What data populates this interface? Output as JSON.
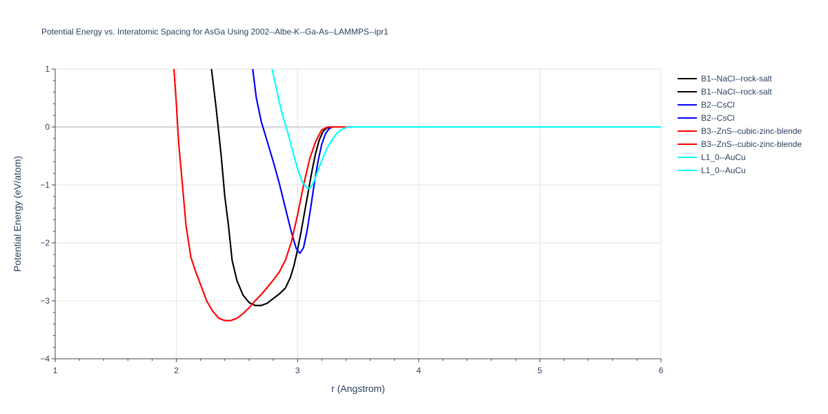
{
  "chart_data": {
    "type": "line",
    "title": "Potential Energy vs. Interatomic Spacing for AsGa Using 2002--Albe-K--Ga-As--LAMMPS--ipr1",
    "xlabel": "r (Angstrom)",
    "ylabel": "Potential Energy (eV/atom)",
    "xlim": [
      1,
      6
    ],
    "ylim": [
      -4,
      1
    ],
    "xticks": [
      1,
      2,
      3,
      4,
      5,
      6
    ],
    "yticks": [
      -4,
      -3,
      -2,
      -1,
      0,
      1
    ],
    "grid": true,
    "legend_position": "right",
    "series": [
      {
        "name": "B1--NaCl--rock-salt",
        "color": "#000000",
        "x": [
          2.29,
          2.33,
          2.37,
          2.4,
          2.43,
          2.46,
          2.5,
          2.55,
          2.6,
          2.65,
          2.7,
          2.75,
          2.8,
          2.85,
          2.9,
          2.94,
          2.97,
          3.0,
          3.03,
          3.06,
          3.09,
          3.12,
          3.15,
          3.18,
          3.21,
          3.24,
          3.27,
          3.3,
          3.35,
          3.4,
          6.0
        ],
        "y": [
          1.0,
          0.3,
          -0.5,
          -1.2,
          -1.7,
          -2.3,
          -2.65,
          -2.9,
          -3.03,
          -3.08,
          -3.08,
          -3.04,
          -2.96,
          -2.88,
          -2.78,
          -2.6,
          -2.4,
          -2.12,
          -1.8,
          -1.45,
          -1.1,
          -0.75,
          -0.45,
          -0.22,
          -0.08,
          -0.02,
          0.0,
          0.0,
          0.0,
          0.0,
          0.0
        ]
      },
      {
        "name": "B1--NaCl--rock-salt",
        "color": "#000000",
        "x": [
          2.29,
          2.33,
          2.37,
          2.4,
          2.43,
          2.46,
          2.5,
          2.55,
          2.6,
          2.65,
          2.7,
          2.75,
          2.8,
          2.85,
          2.9,
          2.94,
          2.97,
          3.0,
          3.03,
          3.06,
          3.09,
          3.12,
          3.15,
          3.18,
          3.21,
          3.24,
          3.27,
          3.3,
          3.35,
          3.4,
          6.0
        ],
        "y": [
          1.0,
          0.3,
          -0.5,
          -1.2,
          -1.7,
          -2.3,
          -2.65,
          -2.9,
          -3.03,
          -3.08,
          -3.08,
          -3.04,
          -2.96,
          -2.88,
          -2.78,
          -2.6,
          -2.4,
          -2.12,
          -1.8,
          -1.45,
          -1.1,
          -0.75,
          -0.45,
          -0.22,
          -0.08,
          -0.02,
          0.0,
          0.0,
          0.0,
          0.0,
          0.0
        ]
      },
      {
        "name": "B2--CsCl",
        "color": "#0000ff",
        "x": [
          2.63,
          2.66,
          2.7,
          2.75,
          2.8,
          2.85,
          2.9,
          2.95,
          2.99,
          3.02,
          3.05,
          3.08,
          3.11,
          3.14,
          3.17,
          3.2,
          3.23,
          3.26,
          3.29,
          3.32,
          3.4,
          6.0
        ],
        "y": [
          1.0,
          0.5,
          0.1,
          -0.25,
          -0.6,
          -0.98,
          -1.4,
          -1.82,
          -2.1,
          -2.18,
          -2.08,
          -1.78,
          -1.38,
          -0.95,
          -0.58,
          -0.3,
          -0.12,
          -0.03,
          0.0,
          0.0,
          0.0,
          0.0
        ]
      },
      {
        "name": "B2--CsCl",
        "color": "#0000ff",
        "x": [
          2.63,
          2.66,
          2.7,
          2.75,
          2.8,
          2.85,
          2.9,
          2.95,
          2.99,
          3.02,
          3.05,
          3.08,
          3.11,
          3.14,
          3.17,
          3.2,
          3.23,
          3.26,
          3.29,
          3.32,
          3.4,
          6.0
        ],
        "y": [
          1.0,
          0.5,
          0.1,
          -0.25,
          -0.6,
          -0.98,
          -1.4,
          -1.82,
          -2.1,
          -2.18,
          -2.08,
          -1.78,
          -1.38,
          -0.95,
          -0.58,
          -0.3,
          -0.12,
          -0.03,
          0.0,
          0.0,
          0.0,
          0.0
        ]
      },
      {
        "name": "B3--ZnS--cubic-zinc-blende",
        "color": "#ff0000",
        "x": [
          1.98,
          2.0,
          2.02,
          2.05,
          2.08,
          2.12,
          2.16,
          2.2,
          2.25,
          2.3,
          2.35,
          2.4,
          2.45,
          2.5,
          2.55,
          2.6,
          2.65,
          2.7,
          2.75,
          2.8,
          2.85,
          2.9,
          2.95,
          3.0,
          3.05,
          3.1,
          3.15,
          3.2,
          3.25,
          3.3,
          3.4,
          6.0
        ],
        "y": [
          1.0,
          0.4,
          -0.3,
          -1.0,
          -1.7,
          -2.25,
          -2.5,
          -2.72,
          -3.0,
          -3.18,
          -3.3,
          -3.34,
          -3.34,
          -3.3,
          -3.22,
          -3.12,
          -3.0,
          -2.89,
          -2.77,
          -2.64,
          -2.5,
          -2.3,
          -1.98,
          -1.52,
          -1.0,
          -0.55,
          -0.25,
          -0.05,
          0.0,
          0.0,
          0.0,
          0.0
        ]
      },
      {
        "name": "B3--ZnS--cubic-zinc-blende",
        "color": "#ff0000",
        "x": [
          1.98,
          2.0,
          2.02,
          2.05,
          2.08,
          2.12,
          2.16,
          2.2,
          2.25,
          2.3,
          2.35,
          2.4,
          2.45,
          2.5,
          2.55,
          2.6,
          2.65,
          2.7,
          2.75,
          2.8,
          2.85,
          2.9,
          2.95,
          3.0,
          3.05,
          3.1,
          3.15,
          3.2,
          3.25,
          3.3,
          3.4,
          6.0
        ],
        "y": [
          1.0,
          0.4,
          -0.3,
          -1.0,
          -1.7,
          -2.25,
          -2.5,
          -2.72,
          -3.0,
          -3.18,
          -3.3,
          -3.34,
          -3.34,
          -3.3,
          -3.22,
          -3.12,
          -3.0,
          -2.89,
          -2.77,
          -2.64,
          -2.5,
          -2.3,
          -1.98,
          -1.52,
          -1.0,
          -0.55,
          -0.25,
          -0.05,
          0.0,
          0.0,
          0.0,
          0.0
        ]
      },
      {
        "name": "L1_0--AuCu",
        "color": "#00ffff",
        "x": [
          2.79,
          2.82,
          2.85,
          2.88,
          2.92,
          2.96,
          3.0,
          3.04,
          3.08,
          3.11,
          3.14,
          3.17,
          3.2,
          3.24,
          3.28,
          3.32,
          3.36,
          3.4,
          3.45,
          3.5,
          6.0
        ],
        "y": [
          1.0,
          0.72,
          0.42,
          0.18,
          -0.1,
          -0.42,
          -0.72,
          -0.95,
          -1.06,
          -1.05,
          -0.92,
          -0.74,
          -0.58,
          -0.38,
          -0.24,
          -0.12,
          -0.05,
          -0.01,
          0.0,
          0.0,
          0.0
        ]
      },
      {
        "name": "L1_0--AuCu",
        "color": "#00ffff",
        "x": [
          2.79,
          2.82,
          2.85,
          2.88,
          2.92,
          2.96,
          3.0,
          3.04,
          3.08,
          3.11,
          3.14,
          3.17,
          3.2,
          3.24,
          3.28,
          3.32,
          3.36,
          3.4,
          3.45,
          3.5,
          6.0
        ],
        "y": [
          1.0,
          0.72,
          0.42,
          0.18,
          -0.1,
          -0.42,
          -0.72,
          -0.95,
          -1.06,
          -1.05,
          -0.92,
          -0.74,
          -0.58,
          -0.38,
          -0.24,
          -0.12,
          -0.05,
          -0.01,
          0.0,
          0.0,
          0.0
        ]
      }
    ]
  }
}
